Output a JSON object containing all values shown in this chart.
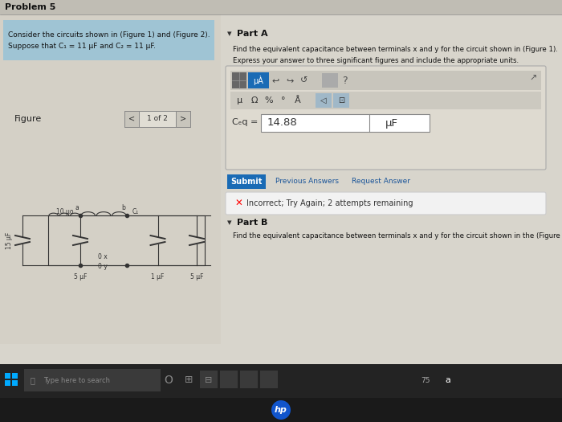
{
  "page_bg": "#d8d5cc",
  "title": "Problem 5",
  "problem_text_line1": "Consider the circuits shown in (Figure 1) and (Figure 2).",
  "problem_text_line2": "Suppose that C₁ = 11 μF and C₂ = 11 μF.",
  "figure_label": "Figure",
  "part_a_label": "Part A",
  "part_a_q1": "Find the equivalent capacitance between terminals x and y for the circuit shown in (Figure 1).",
  "part_a_q2": "Express your answer to three significant figures and include the appropriate units.",
  "ceq_value": "14.88",
  "ceq_unit": "μF",
  "submit_text": "Submit",
  "prev_answers": "Previous Answers",
  "req_answer": "Request Answer",
  "incorrect_text": "Incorrect; Try Again; 2 attempts remaining",
  "part_b_label": "Part B",
  "part_b_q": "Find the equivalent capacitance between terminals x and y for the circuit shown in the (Figure",
  "taskbar_search": "Type here to search",
  "left_panel_bg": "#d4d0c6",
  "right_panel_bg": "#d8d5cc",
  "blue_box_bg": "#9fc4d4",
  "toolbar_bg": "#232323",
  "submit_bg": "#1a6bb5",
  "toolbar1_bg": "#c8c5bc",
  "toolbar2_bg": "#ccc9c0",
  "input_bg": "#ffffff",
  "incorrect_bg": "#f2f2f2",
  "incorrect_border": "#cccccc",
  "blue_btn_bg": "#1a6bb5",
  "gray_btn_bg": "#888888",
  "hp_blue": "#1155cc",
  "win_blue": "#00aaff",
  "link_color": "#1a5599",
  "line_color": "#444444",
  "nav_bg": "#e0ddd4",
  "nav_btn_bg": "#c8c5bc"
}
